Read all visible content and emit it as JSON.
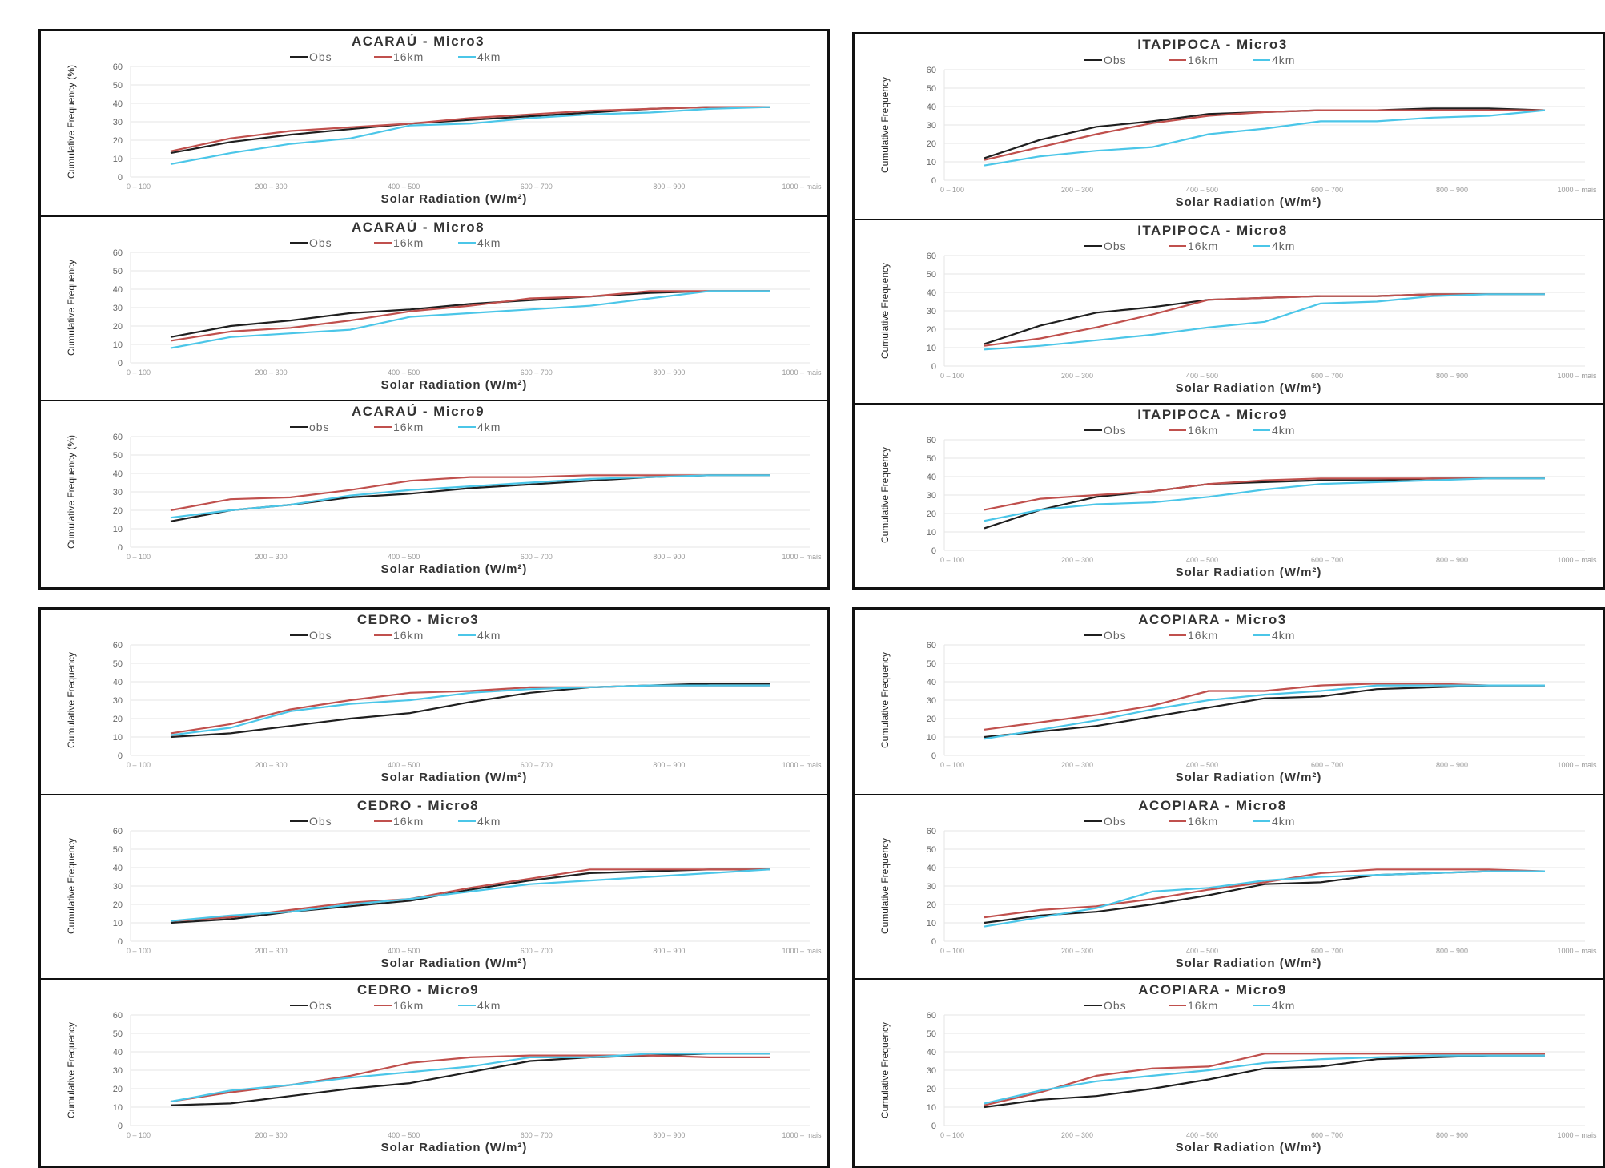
{
  "colors": {
    "Obs": "#1f1f1f",
    "16km": "#c0504d",
    "4km": "#4bc6e8",
    "grid": "#e6e6e6"
  },
  "chart_data": [
    {
      "type": "line",
      "title": "ACARAÚ - Micro3",
      "xlabel": "Solar Radiation (W/m²)",
      "ylabel": "Cumulative Frequency (%)",
      "ylim": [
        0,
        60
      ],
      "yticks": [
        0,
        10,
        20,
        30,
        40,
        50,
        60
      ],
      "categories": [
        "0 – 100",
        "200 – 300",
        "400 – 500",
        "600 – 700",
        "800 – 900",
        "1000 – mais"
      ],
      "x": [
        1,
        2,
        3,
        4,
        5,
        6,
        7,
        8,
        9,
        10,
        11
      ],
      "series": [
        {
          "name": "Obs",
          "values": [
            13,
            19,
            23,
            26,
            29,
            31,
            33,
            35,
            37,
            38,
            38
          ]
        },
        {
          "name": "16km",
          "values": [
            14,
            21,
            25,
            27,
            29,
            32,
            34,
            36,
            37,
            38,
            38
          ]
        },
        {
          "name": "4km",
          "values": [
            7,
            13,
            18,
            21,
            28,
            29,
            32,
            34,
            35,
            37,
            38
          ]
        }
      ]
    },
    {
      "type": "line",
      "title": "ACARAÚ - Micro8",
      "xlabel": "Solar Radiation (W/m²)",
      "ylabel": "Cumulative Frequency",
      "ylim": [
        0,
        60
      ],
      "yticks": [
        0,
        10,
        20,
        30,
        40,
        50,
        60
      ],
      "categories": [
        "0 – 100",
        "200 – 300",
        "400 – 500",
        "600 – 700",
        "800 – 900",
        "1000 – mais"
      ],
      "x": [
        1,
        2,
        3,
        4,
        5,
        6,
        7,
        8,
        9,
        10,
        11
      ],
      "series": [
        {
          "name": "Obs",
          "values": [
            14,
            20,
            23,
            27,
            29,
            32,
            34,
            36,
            38,
            39,
            39
          ]
        },
        {
          "name": "16km",
          "values": [
            12,
            17,
            19,
            23,
            28,
            31,
            35,
            36,
            39,
            39,
            39
          ]
        },
        {
          "name": "4km",
          "values": [
            8,
            14,
            16,
            18,
            25,
            27,
            29,
            31,
            35,
            39,
            39
          ]
        }
      ]
    },
    {
      "type": "line",
      "title": "ACARAÚ - Micro9",
      "xlabel": "Solar Radiation (W/m²)",
      "ylabel": "Cumulative Frequency (%)",
      "ylim": [
        0,
        60
      ],
      "yticks": [
        0,
        10,
        20,
        30,
        40,
        50,
        60
      ],
      "categories": [
        "0 – 100",
        "200 – 300",
        "400 – 500",
        "600 – 700",
        "800 – 900",
        "1000 – mais"
      ],
      "x": [
        1,
        2,
        3,
        4,
        5,
        6,
        7,
        8,
        9,
        10,
        11
      ],
      "series": [
        {
          "name": "obs",
          "values": [
            14,
            20,
            23,
            27,
            29,
            32,
            34,
            36,
            38,
            39,
            39
          ]
        },
        {
          "name": "16km",
          "values": [
            20,
            26,
            27,
            31,
            36,
            38,
            38,
            39,
            39,
            39,
            39
          ]
        },
        {
          "name": "4km",
          "values": [
            16,
            20,
            23,
            28,
            31,
            33,
            35,
            37,
            38,
            39,
            39
          ]
        }
      ]
    },
    {
      "type": "line",
      "title": "ITAPIPOCA - Micro3",
      "xlabel": "Solar Radiation (W/m²)",
      "ylabel": "Cumulative Frequency",
      "ylim": [
        0,
        60
      ],
      "yticks": [
        0,
        10,
        20,
        30,
        40,
        50,
        60
      ],
      "categories": [
        "0 – 100",
        "200 – 300",
        "400 – 500",
        "600 – 700",
        "800 – 900",
        "1000 – mais"
      ],
      "x": [
        1,
        2,
        3,
        4,
        5,
        6,
        7,
        8,
        9,
        10,
        11
      ],
      "series": [
        {
          "name": "Obs",
          "values": [
            12,
            22,
            29,
            32,
            36,
            37,
            38,
            38,
            39,
            39,
            38
          ]
        },
        {
          "name": "16km",
          "values": [
            11,
            18,
            25,
            31,
            35,
            37,
            38,
            38,
            38,
            38,
            38
          ]
        },
        {
          "name": "4km",
          "values": [
            8,
            13,
            16,
            18,
            25,
            28,
            32,
            32,
            34,
            35,
            38
          ]
        }
      ]
    },
    {
      "type": "line",
      "title": "ITAPIPOCA - Micro8",
      "xlabel": "Solar Radiation (W/m²)",
      "ylabel": "Cumulative Frequency",
      "ylim": [
        0,
        60
      ],
      "yticks": [
        0,
        10,
        20,
        30,
        40,
        50,
        60
      ],
      "categories": [
        "0 – 100",
        "200 – 300",
        "400 – 500",
        "600 – 700",
        "800 – 900",
        "1000 – mais"
      ],
      "x": [
        1,
        2,
        3,
        4,
        5,
        6,
        7,
        8,
        9,
        10,
        11
      ],
      "series": [
        {
          "name": "Obs",
          "values": [
            12,
            22,
            29,
            32,
            36,
            37,
            38,
            38,
            39,
            39,
            39
          ]
        },
        {
          "name": "16km",
          "values": [
            11,
            15,
            21,
            28,
            36,
            37,
            38,
            38,
            39,
            39,
            39
          ]
        },
        {
          "name": "4km",
          "values": [
            9,
            11,
            14,
            17,
            21,
            24,
            34,
            35,
            38,
            39,
            39
          ]
        }
      ]
    },
    {
      "type": "line",
      "title": "ITAPIPOCA - Micro9",
      "xlabel": "Solar Radiation (W/m²)",
      "ylabel": "Cumulative Frequency",
      "ylim": [
        0,
        60
      ],
      "yticks": [
        0,
        10,
        20,
        30,
        40,
        50,
        60
      ],
      "categories": [
        "0 – 100",
        "200 – 300",
        "400 – 500",
        "600 – 700",
        "800 – 900",
        "1000 – mais"
      ],
      "x": [
        1,
        2,
        3,
        4,
        5,
        6,
        7,
        8,
        9,
        10,
        11
      ],
      "series": [
        {
          "name": "Obs",
          "values": [
            12,
            22,
            29,
            32,
            36,
            37,
            38,
            38,
            39,
            39,
            39
          ]
        },
        {
          "name": "16km",
          "values": [
            22,
            28,
            30,
            32,
            36,
            38,
            39,
            39,
            39,
            39,
            39
          ]
        },
        {
          "name": "4km",
          "values": [
            16,
            22,
            25,
            26,
            29,
            33,
            36,
            37,
            38,
            39,
            39
          ]
        }
      ]
    },
    {
      "type": "line",
      "title": "CEDRO - Micro3",
      "xlabel": "Solar Radiation (W/m²)",
      "ylabel": "Cumulative Frequency",
      "ylim": [
        0,
        60
      ],
      "yticks": [
        0,
        10,
        20,
        30,
        40,
        50,
        60
      ],
      "categories": [
        "0 – 100",
        "200 – 300",
        "400 – 500",
        "600 – 700",
        "800 – 900",
        "1000 – mais"
      ],
      "x": [
        1,
        2,
        3,
        4,
        5,
        6,
        7,
        8,
        9,
        10,
        11
      ],
      "series": [
        {
          "name": "Obs",
          "values": [
            10,
            12,
            16,
            20,
            23,
            29,
            34,
            37,
            38,
            39,
            39
          ]
        },
        {
          "name": "16km",
          "values": [
            12,
            17,
            25,
            30,
            34,
            35,
            37,
            37,
            38,
            38,
            38
          ]
        },
        {
          "name": "4km",
          "values": [
            11,
            15,
            24,
            28,
            30,
            34,
            36,
            37,
            38,
            38,
            38
          ]
        }
      ]
    },
    {
      "type": "line",
      "title": "CEDRO - Micro8",
      "xlabel": "Solar Radiation (W/m²)",
      "ylabel": "Cumulative Frequency",
      "ylim": [
        0,
        60
      ],
      "yticks": [
        0,
        10,
        20,
        30,
        40,
        50,
        60
      ],
      "categories": [
        "0 – 100",
        "200 – 300",
        "400 – 500",
        "600 – 700",
        "800 – 900",
        "1000 – mais"
      ],
      "x": [
        1,
        2,
        3,
        4,
        5,
        6,
        7,
        8,
        9,
        10,
        11
      ],
      "series": [
        {
          "name": "Obs",
          "values": [
            10,
            12,
            16,
            19,
            22,
            28,
            33,
            37,
            38,
            39,
            39
          ]
        },
        {
          "name": "16km",
          "values": [
            11,
            13,
            17,
            21,
            23,
            29,
            34,
            39,
            39,
            39,
            39
          ]
        },
        {
          "name": "4km",
          "values": [
            11,
            14,
            16,
            20,
            23,
            27,
            31,
            33,
            35,
            37,
            39
          ]
        }
      ]
    },
    {
      "type": "line",
      "title": "CEDRO - Micro9",
      "xlabel": "Solar Radiation (W/m²)",
      "ylabel": "Cumulative Frequency",
      "ylim": [
        0,
        60
      ],
      "yticks": [
        0,
        10,
        20,
        30,
        40,
        50,
        60
      ],
      "categories": [
        "0 – 100",
        "200 – 300",
        "400 – 500",
        "600 – 700",
        "800 – 900",
        "1000 – mais"
      ],
      "x": [
        1,
        2,
        3,
        4,
        5,
        6,
        7,
        8,
        9,
        10,
        11
      ],
      "series": [
        {
          "name": "Obs",
          "values": [
            11,
            12,
            16,
            20,
            23,
            29,
            35,
            37,
            38,
            39,
            39
          ]
        },
        {
          "name": "16km",
          "values": [
            13,
            18,
            22,
            27,
            34,
            37,
            38,
            38,
            38,
            37,
            37
          ]
        },
        {
          "name": "4km",
          "values": [
            13,
            19,
            22,
            26,
            29,
            32,
            37,
            37,
            39,
            39,
            39
          ]
        }
      ]
    },
    {
      "type": "line",
      "title": "ACOPIARA - Micro3",
      "xlabel": "Solar Radiation (W/m²)",
      "ylabel": "Cumulative Frequency",
      "ylim": [
        0,
        60
      ],
      "yticks": [
        0,
        10,
        20,
        30,
        40,
        50,
        60
      ],
      "categories": [
        "0 – 100",
        "200 – 300",
        "400 – 500",
        "600 – 700",
        "800 – 900",
        "1000 – mais"
      ],
      "x": [
        1,
        2,
        3,
        4,
        5,
        6,
        7,
        8,
        9,
        10,
        11
      ],
      "series": [
        {
          "name": "Obs",
          "values": [
            10,
            13,
            16,
            21,
            26,
            31,
            32,
            36,
            37,
            38,
            38
          ]
        },
        {
          "name": "16km",
          "values": [
            14,
            18,
            22,
            27,
            35,
            35,
            38,
            39,
            39,
            38,
            38
          ]
        },
        {
          "name": "4km",
          "values": [
            9,
            14,
            19,
            25,
            30,
            33,
            35,
            38,
            38,
            38,
            38
          ]
        }
      ]
    },
    {
      "type": "line",
      "title": "ACOPIARA - Micro8",
      "xlabel": "Solar Radiation (W/m²)",
      "ylabel": "Cumulative Frequency",
      "ylim": [
        0,
        60
      ],
      "yticks": [
        0,
        10,
        20,
        30,
        40,
        50,
        60
      ],
      "categories": [
        "0 – 100",
        "200 – 300",
        "400 – 500",
        "600 – 700",
        "800 – 900",
        "1000 – mais"
      ],
      "x": [
        1,
        2,
        3,
        4,
        5,
        6,
        7,
        8,
        9,
        10,
        11
      ],
      "series": [
        {
          "name": "Obs",
          "values": [
            10,
            14,
            16,
            20,
            25,
            31,
            32,
            36,
            37,
            38,
            38
          ]
        },
        {
          "name": "16km",
          "values": [
            13,
            17,
            19,
            23,
            28,
            32,
            37,
            39,
            39,
            39,
            38
          ]
        },
        {
          "name": "4km",
          "values": [
            8,
            13,
            18,
            27,
            29,
            33,
            35,
            36,
            37,
            38,
            38
          ]
        }
      ]
    },
    {
      "type": "line",
      "title": "ACOPIARA - Micro9",
      "xlabel": "Solar Radiation (W/m²)",
      "ylabel": "Cumulative Frequency",
      "ylim": [
        0,
        60
      ],
      "yticks": [
        0,
        10,
        20,
        30,
        40,
        50,
        60
      ],
      "categories": [
        "0 – 100",
        "200 – 300",
        "400 – 500",
        "600 – 700",
        "800 – 900",
        "1000 – mais"
      ],
      "x": [
        1,
        2,
        3,
        4,
        5,
        6,
        7,
        8,
        9,
        10,
        11
      ],
      "series": [
        {
          "name": "Obs",
          "values": [
            10,
            14,
            16,
            20,
            25,
            31,
            32,
            36,
            37,
            38,
            38
          ]
        },
        {
          "name": "16km",
          "values": [
            11,
            18,
            27,
            31,
            32,
            39,
            39,
            39,
            39,
            39,
            39
          ]
        },
        {
          "name": "4km",
          "values": [
            12,
            19,
            24,
            27,
            30,
            34,
            36,
            37,
            38,
            38,
            38
          ]
        }
      ]
    }
  ]
}
